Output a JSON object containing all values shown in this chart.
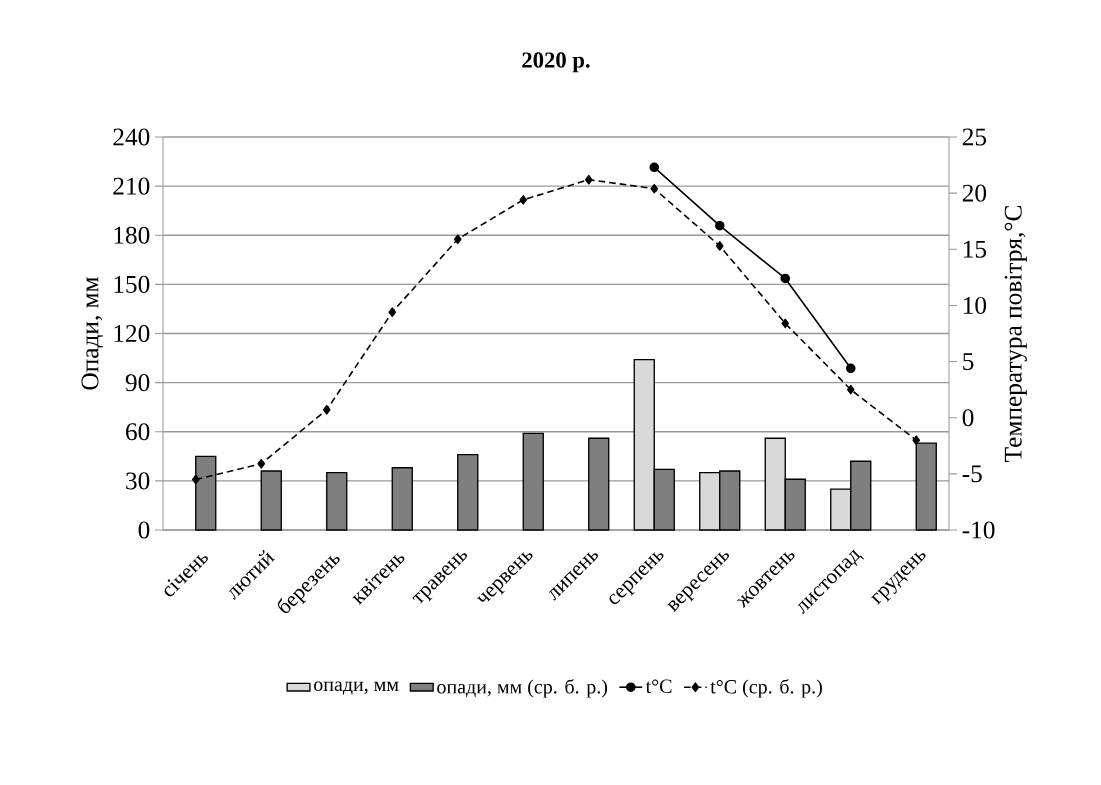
{
  "chart_data": {
    "type": "bar",
    "title": "2020 р.",
    "categories": [
      "січень",
      "лютий",
      "березень",
      "квітень",
      "травень",
      "червень",
      "липень",
      "серпень",
      "вересень",
      "жовтень",
      "листопад",
      "грудень"
    ],
    "series": [
      {
        "name": "опади, мм",
        "color": "#d9d9d9",
        "values": [
          null,
          null,
          null,
          null,
          null,
          null,
          null,
          104,
          35,
          56,
          25,
          null
        ]
      },
      {
        "name": "опади, мм (ср. б. р.)",
        "color": "#7f7f7f",
        "values": [
          45,
          36,
          35,
          38,
          46,
          59,
          56,
          37,
          36,
          31,
          42,
          53
        ]
      },
      {
        "name": "t°C",
        "type": "line",
        "axis": "y2",
        "color": "#000000",
        "marker": "circle",
        "line_style": "solid",
        "values": [
          null,
          null,
          null,
          null,
          null,
          null,
          null,
          22.3,
          17.1,
          12.4,
          4.4,
          null
        ]
      },
      {
        "name": "t°C (ср. б. р.)",
        "type": "line",
        "axis": "y2",
        "color": "#000000",
        "marker": "diamond",
        "line_style": "dashed",
        "values": [
          -5.5,
          -4.1,
          0.7,
          9.4,
          15.9,
          19.4,
          21.2,
          20.4,
          15.3,
          8.4,
          2.5,
          -2.0
        ]
      }
    ],
    "ylabel": "Опади, мм",
    "y2label": "Температура  повітря,°С",
    "ylim": [
      0,
      240
    ],
    "yticks": [
      0,
      30,
      60,
      90,
      120,
      150,
      180,
      210,
      240
    ],
    "y2lim": [
      -10,
      25
    ],
    "y2ticks": [
      -10,
      -5,
      0,
      5,
      10,
      15,
      20,
      25
    ],
    "grid": "y",
    "legend": "bottom"
  }
}
